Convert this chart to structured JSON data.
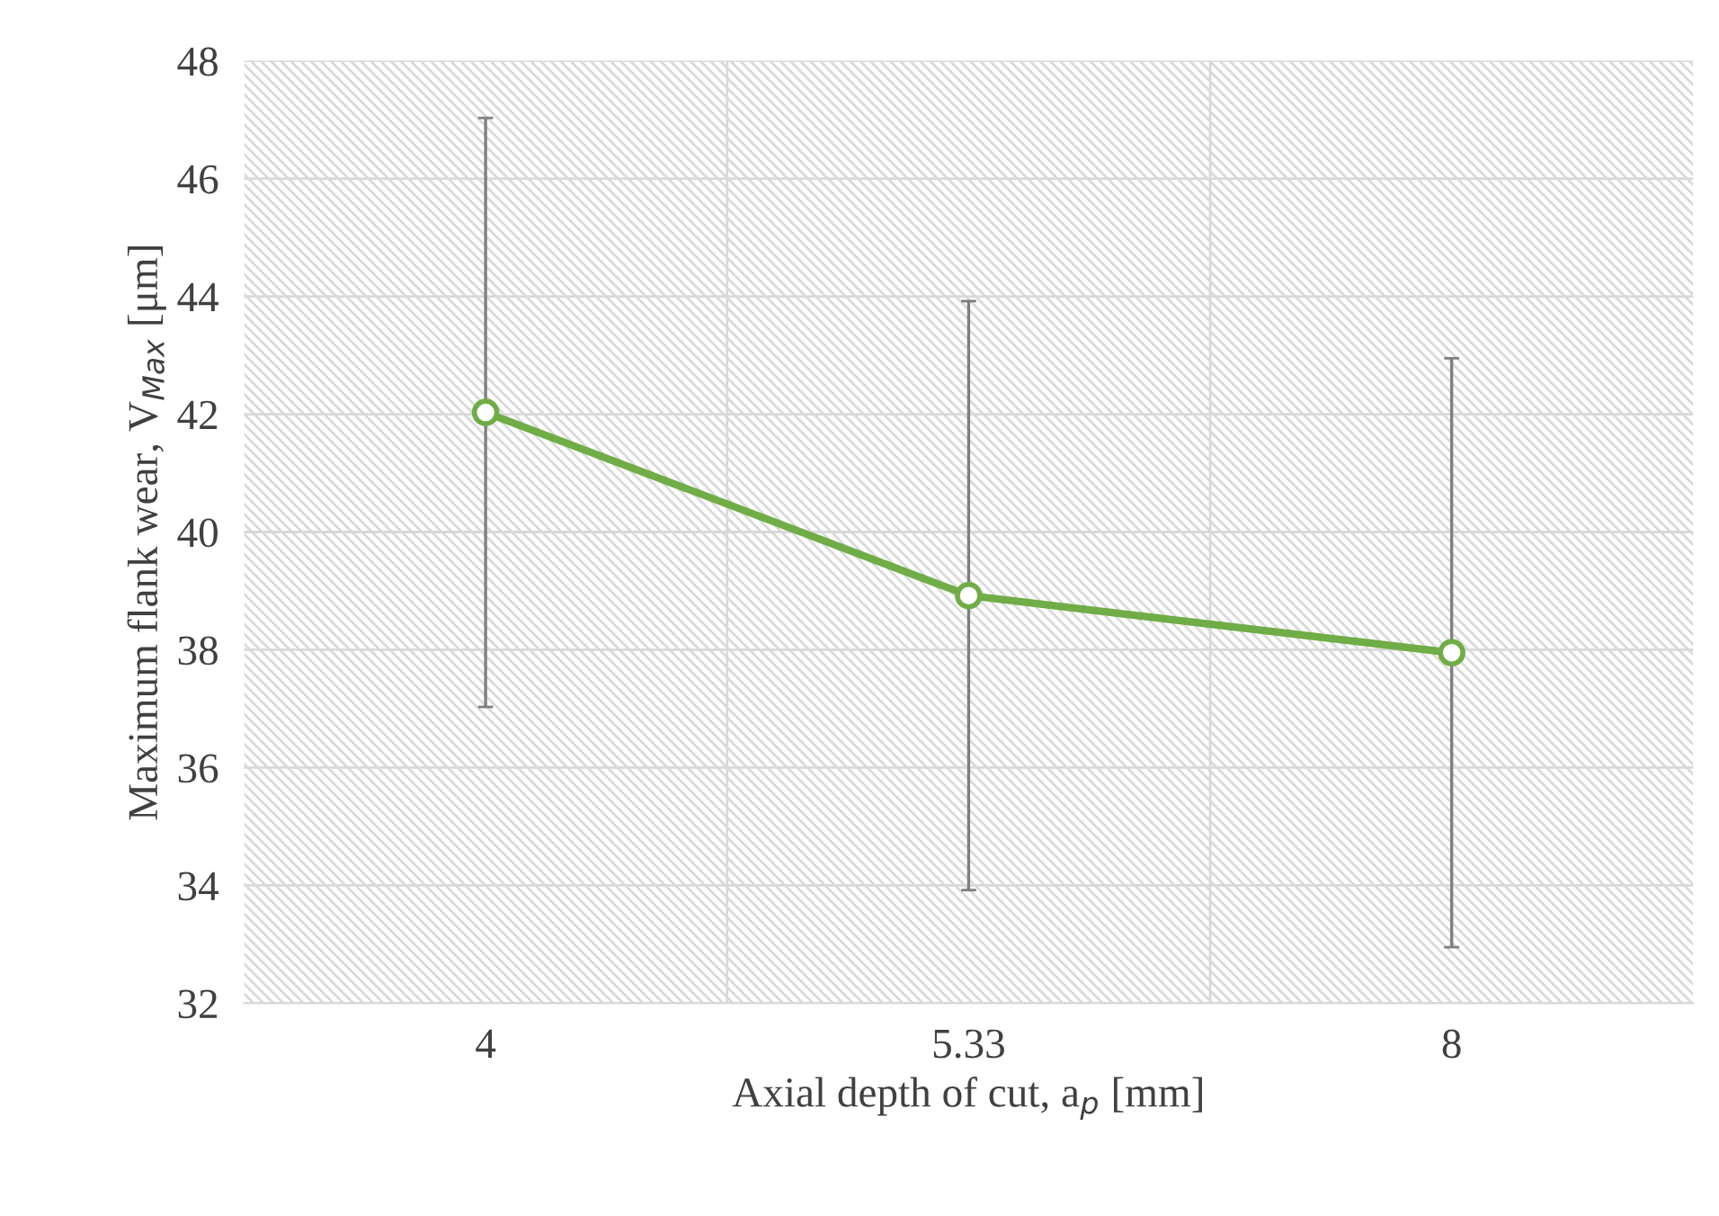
{
  "chart_data": {
    "type": "line",
    "xlabel": "Axial depth of cut, a$_{p}$ [mm]",
    "ylabel": "Maximum flank wear, V$_{Max}$ [μm]",
    "categories": [
      "4",
      "5.33",
      "8"
    ],
    "series": [
      {
        "color": "#70ad47",
        "values": [
          42.03,
          38.92,
          37.95
        ],
        "errors": [
          5,
          5,
          5
        ]
      }
    ],
    "ylim": [
      32,
      48
    ],
    "yticks": [
      32,
      34,
      36,
      38,
      40,
      42,
      44,
      46,
      48
    ],
    "grid": true,
    "marker": "circle",
    "line_style": "solid"
  }
}
